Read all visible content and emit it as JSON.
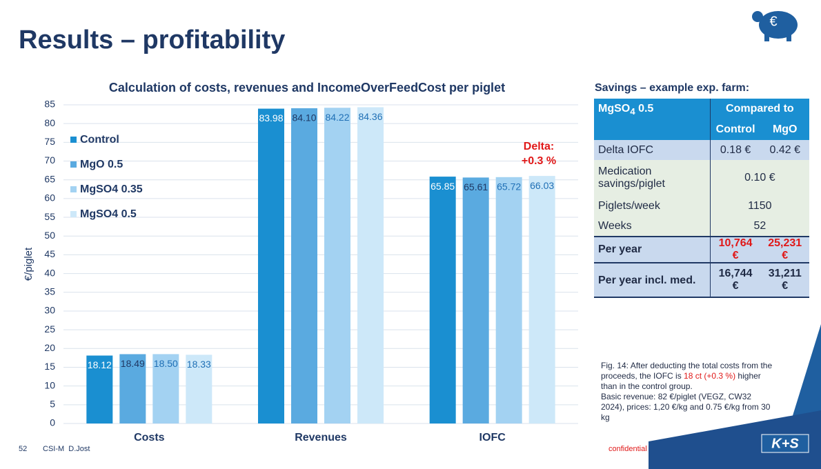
{
  "title": "Results – profitability",
  "logo_icon": "€",
  "chart_data": {
    "type": "bar",
    "title": "Calculation of costs, revenues and IncomeOverFeedCost per piglet",
    "y_label": "€/piglet",
    "categories": [
      "Costs",
      "Revenues",
      "IOFC"
    ],
    "series": [
      {
        "name": "Control",
        "color": "#1a8fd1",
        "values": [
          18.12,
          83.98,
          65.85
        ],
        "value_labels": [
          "18.12",
          "83.98",
          "65.85"
        ]
      },
      {
        "name": "MgO 0.5",
        "color": "#5aaae0",
        "values": [
          18.49,
          84.1,
          65.61
        ],
        "value_labels": [
          "18.49",
          "84.10",
          "65.61"
        ]
      },
      {
        "name": "MgSO4 0.35",
        "color": "#a3d2f2",
        "values": [
          18.5,
          84.22,
          65.72
        ],
        "value_labels": [
          "18.50",
          "84.22",
          "65.72"
        ]
      },
      {
        "name": "MgSO4 0.5",
        "color": "#cde8f9",
        "values": [
          18.33,
          84.36,
          66.03
        ],
        "value_labels": [
          "18.33",
          "84.36",
          "66.03"
        ]
      }
    ],
    "ylim": [
      0,
      85
    ],
    "yticks": [
      0,
      5,
      10,
      15,
      20,
      25,
      30,
      35,
      40,
      45,
      50,
      55,
      60,
      65,
      70,
      75,
      80,
      85
    ],
    "grid": true,
    "legend": "upper left",
    "annotation": [
      "Delta:",
      "+0.3 %"
    ]
  },
  "table": {
    "title": "Savings – example exp. farm:",
    "corner": [
      "MgSO",
      "4",
      " 0.5"
    ],
    "group_header": "Compared to",
    "columns": [
      "Control",
      "MgO"
    ],
    "rows": [
      [
        "Delta IOFC",
        "0.18 €",
        "0.42 €"
      ],
      [
        "Medication savings/piglet",
        "0.10 €"
      ],
      [
        "Piglets/week",
        "1150"
      ],
      [
        "Weeks",
        "52"
      ],
      [
        "Per year",
        "10,764 €",
        "25,231 €"
      ],
      [
        "Per year incl. med.",
        "16,744 €",
        "31,211 €"
      ]
    ]
  },
  "caption": [
    "Fig. 14: After deducting the total costs from the proceeds, the IOFC is ",
    "18 ct (+0.3 %)",
    " higher than in the control group.",
    "Basic revenue: 82 €/piglet (VEGZ, CW32 2024), prices: 1,20 €/kg and 0.75 €/kg from 30 kg"
  ],
  "footer": {
    "page": "52",
    "author": "CSI-M  D.Jost",
    "confidential": "confidential",
    "logo": "K+S"
  }
}
